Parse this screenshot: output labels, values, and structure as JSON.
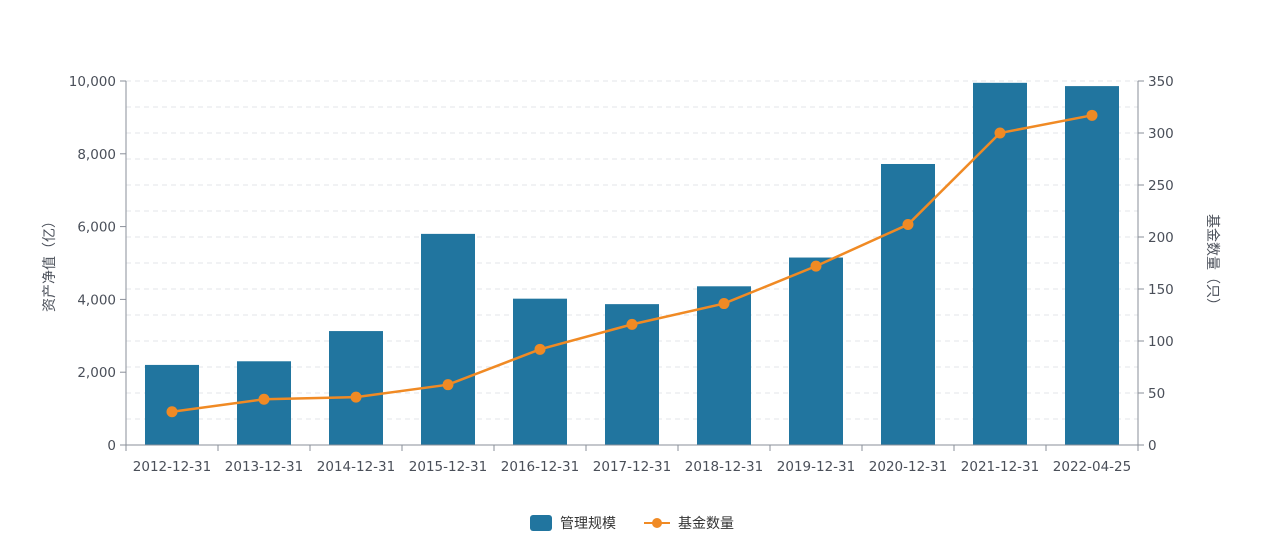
{
  "chart_data": {
    "type": "bar",
    "categories": [
      "2012-12-31",
      "2013-12-31",
      "2014-12-31",
      "2015-12-31",
      "2016-12-31",
      "2017-12-31",
      "2018-12-31",
      "2019-12-31",
      "2020-12-31",
      "2021-12-31",
      "2022-04-25"
    ],
    "series": [
      {
        "name": "管理规模",
        "type": "bar",
        "axis": "left",
        "color": "#21759f",
        "values": [
          2200,
          2300,
          3130,
          5800,
          4020,
          3870,
          4360,
          5150,
          7720,
          9950,
          9860
        ]
      },
      {
        "name": "基金数量",
        "type": "line",
        "axis": "right",
        "color": "#f08a24",
        "values": [
          32,
          44,
          46,
          58,
          92,
          116,
          136,
          172,
          212,
          300,
          317
        ]
      }
    ],
    "ylabel": "资产净值（亿）",
    "y2label": "基金数量（只）",
    "ylim": [
      0,
      10000
    ],
    "y2lim": [
      0,
      350
    ],
    "yticks": [
      "0",
      "2,000",
      "4,000",
      "6,000",
      "8,000",
      "10,000"
    ],
    "y2ticks": [
      "0",
      "50",
      "100",
      "150",
      "200",
      "250",
      "300",
      "350"
    ],
    "grid": true,
    "legend_position": "bottom-center"
  }
}
